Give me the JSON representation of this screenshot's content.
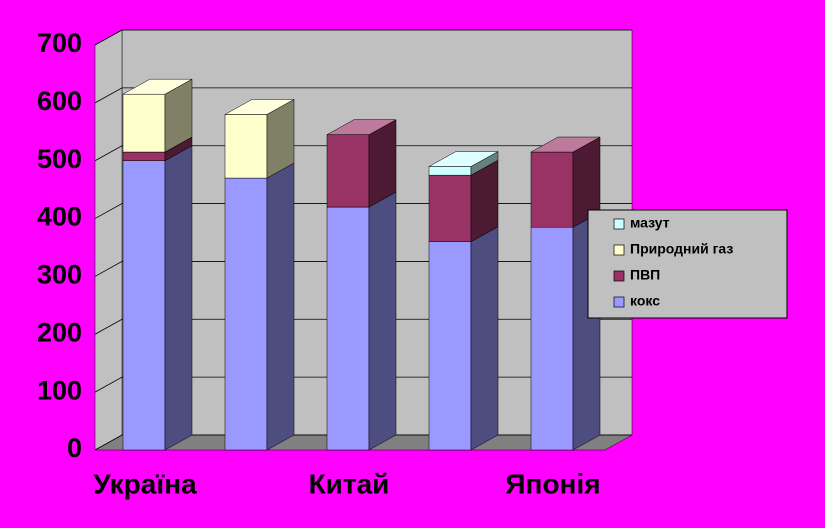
{
  "chart_data": {
    "type": "bar3d_stacked",
    "categories": [
      "Україна",
      null,
      "Китай",
      null,
      "Японія"
    ],
    "series": [
      {
        "name": "кокс",
        "color": "#9999ff",
        "values": [
          500,
          470,
          420,
          360,
          385
        ]
      },
      {
        "name": "ПВП",
        "color": "#993366",
        "values": [
          15,
          null,
          125,
          115,
          130
        ]
      },
      {
        "name": "Природний газ",
        "color": "#ffffcc",
        "values": [
          100,
          110,
          null,
          null,
          null
        ]
      },
      {
        "name": "мазут",
        "color": "#ccffff",
        "values": [
          null,
          null,
          null,
          15,
          null
        ]
      }
    ],
    "ylim": [
      0,
      700
    ],
    "yticks": [
      0,
      100,
      200,
      300,
      400,
      500,
      600,
      700
    ],
    "grid": true,
    "legend": "right"
  }
}
